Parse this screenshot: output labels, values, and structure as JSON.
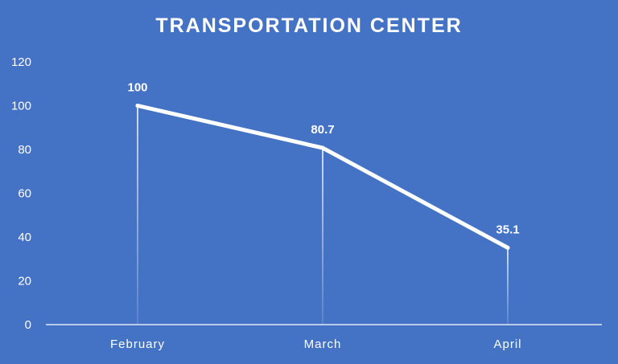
{
  "chart_data": {
    "type": "line",
    "title": "TRANSPORTATION CENTER",
    "categories": [
      "February",
      "March",
      "April"
    ],
    "series": [
      {
        "values": [
          100,
          80.7,
          35.1
        ]
      }
    ],
    "data_labels": [
      "100",
      "80.7",
      "35.1"
    ],
    "yticks": [
      "0",
      "20",
      "40",
      "60",
      "80",
      "100",
      "120"
    ],
    "ylim": [
      0,
      120
    ],
    "grid": false,
    "drop_lines": true,
    "colors": {
      "background": "#4472c4",
      "line": "#ffffff",
      "text": "#ffffff"
    }
  }
}
